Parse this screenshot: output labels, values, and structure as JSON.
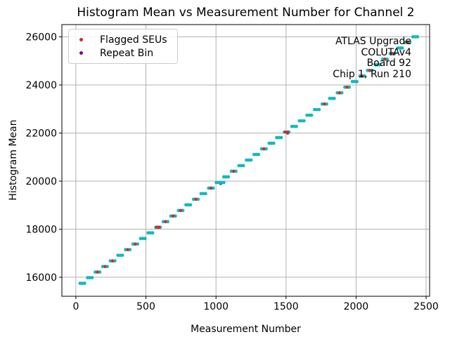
{
  "legend": {
    "position": "upper left",
    "items": [
      {
        "label": "Flagged SEUs",
        "color": "#d62728"
      },
      {
        "label": "Repeat Bin",
        "color": "#800080"
      }
    ]
  },
  "annotation": {
    "lines": [
      "ATLAS Upgrade",
      "COLUTAv4",
      "Board 92",
      "Chip 1, Run 210"
    ]
  },
  "chart_data": {
    "type": "scatter",
    "title": "Histogram Mean vs Measurement Number for Channel 2",
    "xlabel": "Measurement Number",
    "ylabel": "Histogram Mean",
    "xlim": [
      -100,
      2525
    ],
    "ylim": [
      15210,
      26510
    ],
    "xticks": [
      0,
      500,
      1000,
      1500,
      2000,
      2500
    ],
    "yticks": [
      16000,
      18000,
      20000,
      22000,
      24000,
      26000
    ],
    "grid": true,
    "grid_color": "#b2b2b2",
    "spine_color": "#000000",
    "series": [
      {
        "name": "Repeat Bin",
        "color": "#800080",
        "marker_r": 2.4,
        "points": [
          [
            1034,
            19908
          ],
          [
            1512,
            22005
          ]
        ]
      },
      {
        "name": "Histogram Mean",
        "color": "#14b8bf",
        "marker_r": 2.4,
        "cluster_dot_offsets": [
          0,
          16,
          32
        ],
        "clusters": [
          [
            30,
            15750
          ],
          [
            84,
            15983
          ],
          [
            138,
            16216
          ],
          [
            192,
            16449
          ],
          [
            246,
            16682
          ],
          [
            300,
            16915
          ],
          [
            354,
            17148
          ],
          [
            408,
            17381
          ],
          [
            462,
            17614
          ],
          [
            516,
            17847
          ],
          [
            570,
            18080
          ],
          [
            624,
            18313
          ],
          [
            678,
            18546
          ],
          [
            732,
            18779
          ],
          [
            786,
            19012
          ],
          [
            840,
            19245
          ],
          [
            894,
            19478
          ],
          [
            948,
            19711
          ],
          [
            1002,
            19944
          ],
          [
            1056,
            20177
          ],
          [
            1110,
            20410
          ],
          [
            1164,
            20643
          ],
          [
            1218,
            20876
          ],
          [
            1272,
            21109
          ],
          [
            1326,
            21342
          ],
          [
            1380,
            21575
          ],
          [
            1434,
            21808
          ],
          [
            1488,
            22041
          ],
          [
            1542,
            22274
          ],
          [
            1596,
            22507
          ],
          [
            1650,
            22740
          ],
          [
            1704,
            22973
          ],
          [
            1758,
            23206
          ],
          [
            1812,
            23439
          ],
          [
            1866,
            23672
          ],
          [
            1920,
            23905
          ],
          [
            1974,
            24138
          ],
          [
            2028,
            24371
          ],
          [
            2082,
            24604
          ],
          [
            2136,
            24837
          ],
          [
            2190,
            25070
          ],
          [
            2244,
            25303
          ],
          [
            2298,
            25536
          ],
          [
            2352,
            25769
          ],
          [
            2406,
            26002
          ]
        ],
        "extra_points": [
          [
            1024,
            19944
          ],
          [
            1040,
            19944
          ],
          [
            1056,
            19944
          ]
        ]
      },
      {
        "name": "Flagged SEUs",
        "color": "#d62728",
        "marker_r": 2.15,
        "points": [
          [
            154,
            16216
          ],
          [
            208,
            16449
          ],
          [
            262,
            16682
          ],
          [
            370,
            17148
          ],
          [
            424,
            17381
          ],
          [
            578,
            18080
          ],
          [
            594,
            18080
          ],
          [
            640,
            18313
          ],
          [
            694,
            18546
          ],
          [
            748,
            18779
          ],
          [
            856,
            19245
          ],
          [
            964,
            19711
          ],
          [
            1126,
            20410
          ],
          [
            1342,
            21342
          ],
          [
            1496,
            22041
          ],
          [
            1512,
            22041
          ],
          [
            1774,
            23206
          ],
          [
            1882,
            23672
          ],
          [
            1936,
            23905
          ],
          [
            2044,
            24371
          ],
          [
            2098,
            24604
          ],
          [
            2206,
            25070
          ],
          [
            2260,
            25303
          ],
          [
            2368,
            25769
          ]
        ]
      }
    ]
  }
}
